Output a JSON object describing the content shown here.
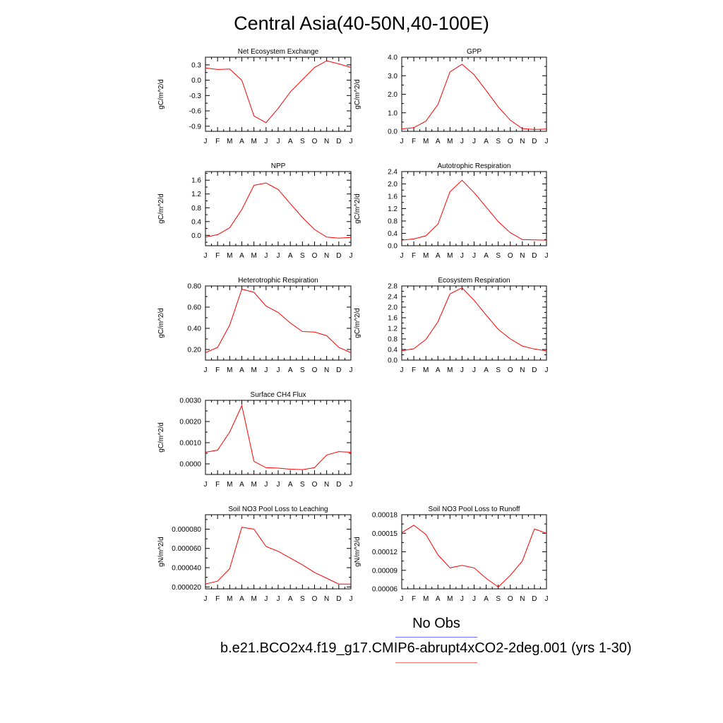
{
  "title": "Central Asia(40-50N,40-100E)",
  "legend": {
    "obs_label": "No Obs",
    "obs_color": "#6f6fff",
    "model_label": "b.e21.BCO2x4.f19_g17.CMIP6-abrupt4xCO2-2deg.001 (yrs 1-30)",
    "model_color": "#ff0000"
  },
  "chart_data": [
    {
      "type": "line",
      "title": "Net Ecosystem Exchange",
      "ylabel": "gC/m^2/d",
      "categories": [
        "J",
        "F",
        "M",
        "A",
        "M",
        "J",
        "J",
        "A",
        "S",
        "O",
        "N",
        "D",
        "J"
      ],
      "ylim": [
        -1.0,
        0.45
      ],
      "yticks": [
        -0.9,
        -0.6,
        -0.3,
        0.0,
        0.3
      ],
      "ytick_labels": [
        "-0.9",
        "-0.6",
        "-0.3",
        "0.0",
        "0.3"
      ],
      "series": [
        {
          "color": "#ff0000",
          "values": [
            0.24,
            0.21,
            0.22,
            0.0,
            -0.7,
            -0.83,
            -0.55,
            -0.23,
            0.01,
            0.25,
            0.38,
            0.32,
            0.25
          ]
        }
      ]
    },
    {
      "type": "line",
      "title": "GPP",
      "ylabel": "gC/m^2/d",
      "categories": [
        "J",
        "F",
        "M",
        "A",
        "M",
        "J",
        "J",
        "A",
        "S",
        "O",
        "N",
        "D",
        "J"
      ],
      "ylim": [
        0.0,
        4.0
      ],
      "yticks": [
        0.0,
        1.0,
        2.0,
        3.0,
        4.0
      ],
      "ytick_labels": [
        "0.0",
        "1.0",
        "2.0",
        "3.0",
        "4.0"
      ],
      "series": [
        {
          "color": "#ff0000",
          "values": [
            0.12,
            0.2,
            0.55,
            1.45,
            3.2,
            3.62,
            3.05,
            2.2,
            1.32,
            0.6,
            0.15,
            0.1,
            0.12
          ]
        }
      ]
    },
    {
      "type": "line",
      "title": "NPP",
      "ylabel": "gC/m^2/d",
      "categories": [
        "J",
        "F",
        "M",
        "A",
        "M",
        "J",
        "J",
        "A",
        "S",
        "O",
        "N",
        "D",
        "J"
      ],
      "ylim": [
        -0.3,
        1.85
      ],
      "yticks": [
        0.0,
        0.4,
        0.8,
        1.2,
        1.6
      ],
      "ytick_labels": [
        "0.0",
        "0.4",
        "0.8",
        "1.2",
        "1.6"
      ],
      "series": [
        {
          "color": "#ff0000",
          "values": [
            -0.05,
            0.02,
            0.22,
            0.75,
            1.45,
            1.52,
            1.33,
            0.92,
            0.52,
            0.17,
            -0.05,
            -0.08,
            -0.06
          ]
        }
      ]
    },
    {
      "type": "line",
      "title": "Autotrophic Respiration",
      "ylabel": "gC/m^2/d",
      "categories": [
        "J",
        "F",
        "M",
        "A",
        "M",
        "J",
        "J",
        "A",
        "S",
        "O",
        "N",
        "D",
        "J"
      ],
      "ylim": [
        0.0,
        2.4
      ],
      "yticks": [
        0.0,
        0.4,
        0.8,
        1.2,
        1.6,
        2.0,
        2.4
      ],
      "ytick_labels": [
        "0.0",
        "0.4",
        "0.8",
        "1.2",
        "1.6",
        "2.0",
        "2.4"
      ],
      "series": [
        {
          "color": "#ff0000",
          "values": [
            0.18,
            0.22,
            0.32,
            0.7,
            1.75,
            2.12,
            1.72,
            1.25,
            0.78,
            0.42,
            0.2,
            0.19,
            0.18
          ]
        }
      ]
    },
    {
      "type": "line",
      "title": "Heterotrophic Respiration",
      "ylabel": "gC/m^2/d",
      "categories": [
        "J",
        "F",
        "M",
        "A",
        "M",
        "J",
        "J",
        "A",
        "S",
        "O",
        "N",
        "D",
        "J"
      ],
      "ylim": [
        0.1,
        0.8
      ],
      "yticks": [
        0.2,
        0.4,
        0.6,
        0.8
      ],
      "ytick_labels": [
        "0.20",
        "0.40",
        "0.60",
        "0.80"
      ],
      "series": [
        {
          "color": "#ff0000",
          "values": [
            0.17,
            0.22,
            0.43,
            0.77,
            0.74,
            0.61,
            0.55,
            0.45,
            0.37,
            0.365,
            0.33,
            0.22,
            0.17
          ]
        }
      ]
    },
    {
      "type": "line",
      "title": "Ecosystem Respiration",
      "ylabel": "gC/m^2/d",
      "categories": [
        "J",
        "F",
        "M",
        "A",
        "M",
        "J",
        "J",
        "A",
        "S",
        "O",
        "N",
        "D",
        "J"
      ],
      "ylim": [
        0.0,
        2.8
      ],
      "yticks": [
        0.0,
        0.4,
        0.8,
        1.2,
        1.6,
        2.0,
        2.4,
        2.8
      ],
      "ytick_labels": [
        "0.0",
        "0.4",
        "0.8",
        "1.2",
        "1.6",
        "2.0",
        "2.4",
        "2.8"
      ],
      "series": [
        {
          "color": "#ff0000",
          "values": [
            0.35,
            0.43,
            0.78,
            1.45,
            2.5,
            2.73,
            2.26,
            1.7,
            1.16,
            0.8,
            0.53,
            0.42,
            0.35
          ]
        }
      ]
    },
    {
      "type": "line",
      "title": "Surface CH4 Flux",
      "ylabel": "gC/m^2/d",
      "categories": [
        "J",
        "F",
        "M",
        "A",
        "M",
        "J",
        "J",
        "A",
        "S",
        "O",
        "N",
        "D",
        "J"
      ],
      "ylim": [
        -0.0005,
        0.003
      ],
      "yticks": [
        0.0,
        0.001,
        0.002,
        0.003
      ],
      "ytick_labels": [
        "0.0000",
        "0.0010",
        "0.0020",
        "0.0030"
      ],
      "series": [
        {
          "color": "#ff0000",
          "values": [
            0.00055,
            0.00065,
            0.0015,
            0.00275,
            0.00012,
            -0.00018,
            -0.0002,
            -0.00025,
            -0.00027,
            -0.00018,
            0.00042,
            0.00058,
            0.00055
          ]
        }
      ]
    },
    {
      "type": "line",
      "title": "Soil NO3 Pool Loss to Leaching",
      "ylabel": "gN/m^2/d",
      "categories": [
        "J",
        "F",
        "M",
        "A",
        "M",
        "J",
        "J",
        "A",
        "S",
        "O",
        "N",
        "D",
        "J"
      ],
      "ylim": [
        1.8e-05,
        9.5e-05
      ],
      "yticks": [
        2e-05,
        4e-05,
        6e-05,
        8e-05
      ],
      "ytick_labels": [
        "0.000020",
        "0.000040",
        "0.000060",
        "0.000080"
      ],
      "series": [
        {
          "color": "#ff0000",
          "values": [
            2.3e-05,
            2.6e-05,
            3.9e-05,
            8.2e-05,
            8e-05,
            6.2e-05,
            5.7e-05,
            5e-05,
            4.3e-05,
            3.5e-05,
            2.9e-05,
            2.3e-05,
            2.3e-05
          ]
        }
      ]
    },
    {
      "type": "line",
      "title": "Soil NO3 Pool Loss to Runoff",
      "ylabel": "gN/m^2/d",
      "categories": [
        "J",
        "F",
        "M",
        "A",
        "M",
        "J",
        "J",
        "A",
        "S",
        "O",
        "N",
        "D",
        "J"
      ],
      "ylim": [
        6e-05,
        0.00018
      ],
      "yticks": [
        6e-05,
        9e-05,
        0.00012,
        0.00015,
        0.00018
      ],
      "ytick_labels": [
        "0.00006",
        "0.00009",
        "0.00012",
        "0.00015",
        "0.00018"
      ],
      "series": [
        {
          "color": "#ff0000",
          "values": [
            0.000151,
            0.000163,
            0.000148,
            0.000115,
            9.4e-05,
            9.8e-05,
            9.4e-05,
            7.7e-05,
            6.3e-05,
            8.2e-05,
            0.000105,
            0.000157,
            0.00015
          ]
        }
      ]
    }
  ]
}
